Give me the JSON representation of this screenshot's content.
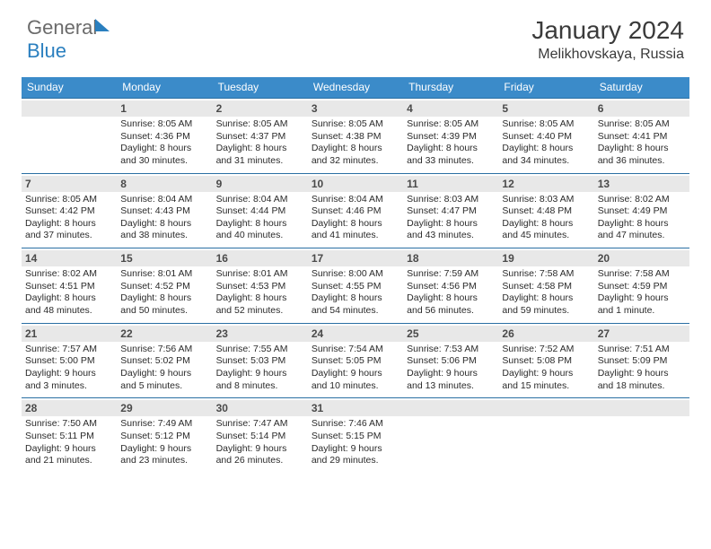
{
  "logo": {
    "word1": "General",
    "word2": "Blue"
  },
  "title": {
    "month": "January 2024",
    "location": "Melikhovskaya, Russia"
  },
  "day_headers": [
    "Sunday",
    "Monday",
    "Tuesday",
    "Wednesday",
    "Thursday",
    "Friday",
    "Saturday"
  ],
  "colors": {
    "header_bg": "#3b8bc9",
    "week_border": "#2a6fa3",
    "daynum_bg": "#e8e8e8",
    "logo_gray": "#6b6b6b",
    "logo_blue": "#2a7fbf"
  },
  "weeks": [
    [
      null,
      {
        "n": "1",
        "sr": "Sunrise: 8:05 AM",
        "ss": "Sunset: 4:36 PM",
        "d1": "Daylight: 8 hours",
        "d2": "and 30 minutes."
      },
      {
        "n": "2",
        "sr": "Sunrise: 8:05 AM",
        "ss": "Sunset: 4:37 PM",
        "d1": "Daylight: 8 hours",
        "d2": "and 31 minutes."
      },
      {
        "n": "3",
        "sr": "Sunrise: 8:05 AM",
        "ss": "Sunset: 4:38 PM",
        "d1": "Daylight: 8 hours",
        "d2": "and 32 minutes."
      },
      {
        "n": "4",
        "sr": "Sunrise: 8:05 AM",
        "ss": "Sunset: 4:39 PM",
        "d1": "Daylight: 8 hours",
        "d2": "and 33 minutes."
      },
      {
        "n": "5",
        "sr": "Sunrise: 8:05 AM",
        "ss": "Sunset: 4:40 PM",
        "d1": "Daylight: 8 hours",
        "d2": "and 34 minutes."
      },
      {
        "n": "6",
        "sr": "Sunrise: 8:05 AM",
        "ss": "Sunset: 4:41 PM",
        "d1": "Daylight: 8 hours",
        "d2": "and 36 minutes."
      }
    ],
    [
      {
        "n": "7",
        "sr": "Sunrise: 8:05 AM",
        "ss": "Sunset: 4:42 PM",
        "d1": "Daylight: 8 hours",
        "d2": "and 37 minutes."
      },
      {
        "n": "8",
        "sr": "Sunrise: 8:04 AM",
        "ss": "Sunset: 4:43 PM",
        "d1": "Daylight: 8 hours",
        "d2": "and 38 minutes."
      },
      {
        "n": "9",
        "sr": "Sunrise: 8:04 AM",
        "ss": "Sunset: 4:44 PM",
        "d1": "Daylight: 8 hours",
        "d2": "and 40 minutes."
      },
      {
        "n": "10",
        "sr": "Sunrise: 8:04 AM",
        "ss": "Sunset: 4:46 PM",
        "d1": "Daylight: 8 hours",
        "d2": "and 41 minutes."
      },
      {
        "n": "11",
        "sr": "Sunrise: 8:03 AM",
        "ss": "Sunset: 4:47 PM",
        "d1": "Daylight: 8 hours",
        "d2": "and 43 minutes."
      },
      {
        "n": "12",
        "sr": "Sunrise: 8:03 AM",
        "ss": "Sunset: 4:48 PM",
        "d1": "Daylight: 8 hours",
        "d2": "and 45 minutes."
      },
      {
        "n": "13",
        "sr": "Sunrise: 8:02 AM",
        "ss": "Sunset: 4:49 PM",
        "d1": "Daylight: 8 hours",
        "d2": "and 47 minutes."
      }
    ],
    [
      {
        "n": "14",
        "sr": "Sunrise: 8:02 AM",
        "ss": "Sunset: 4:51 PM",
        "d1": "Daylight: 8 hours",
        "d2": "and 48 minutes."
      },
      {
        "n": "15",
        "sr": "Sunrise: 8:01 AM",
        "ss": "Sunset: 4:52 PM",
        "d1": "Daylight: 8 hours",
        "d2": "and 50 minutes."
      },
      {
        "n": "16",
        "sr": "Sunrise: 8:01 AM",
        "ss": "Sunset: 4:53 PM",
        "d1": "Daylight: 8 hours",
        "d2": "and 52 minutes."
      },
      {
        "n": "17",
        "sr": "Sunrise: 8:00 AM",
        "ss": "Sunset: 4:55 PM",
        "d1": "Daylight: 8 hours",
        "d2": "and 54 minutes."
      },
      {
        "n": "18",
        "sr": "Sunrise: 7:59 AM",
        "ss": "Sunset: 4:56 PM",
        "d1": "Daylight: 8 hours",
        "d2": "and 56 minutes."
      },
      {
        "n": "19",
        "sr": "Sunrise: 7:58 AM",
        "ss": "Sunset: 4:58 PM",
        "d1": "Daylight: 8 hours",
        "d2": "and 59 minutes."
      },
      {
        "n": "20",
        "sr": "Sunrise: 7:58 AM",
        "ss": "Sunset: 4:59 PM",
        "d1": "Daylight: 9 hours",
        "d2": "and 1 minute."
      }
    ],
    [
      {
        "n": "21",
        "sr": "Sunrise: 7:57 AM",
        "ss": "Sunset: 5:00 PM",
        "d1": "Daylight: 9 hours",
        "d2": "and 3 minutes."
      },
      {
        "n": "22",
        "sr": "Sunrise: 7:56 AM",
        "ss": "Sunset: 5:02 PM",
        "d1": "Daylight: 9 hours",
        "d2": "and 5 minutes."
      },
      {
        "n": "23",
        "sr": "Sunrise: 7:55 AM",
        "ss": "Sunset: 5:03 PM",
        "d1": "Daylight: 9 hours",
        "d2": "and 8 minutes."
      },
      {
        "n": "24",
        "sr": "Sunrise: 7:54 AM",
        "ss": "Sunset: 5:05 PM",
        "d1": "Daylight: 9 hours",
        "d2": "and 10 minutes."
      },
      {
        "n": "25",
        "sr": "Sunrise: 7:53 AM",
        "ss": "Sunset: 5:06 PM",
        "d1": "Daylight: 9 hours",
        "d2": "and 13 minutes."
      },
      {
        "n": "26",
        "sr": "Sunrise: 7:52 AM",
        "ss": "Sunset: 5:08 PM",
        "d1": "Daylight: 9 hours",
        "d2": "and 15 minutes."
      },
      {
        "n": "27",
        "sr": "Sunrise: 7:51 AM",
        "ss": "Sunset: 5:09 PM",
        "d1": "Daylight: 9 hours",
        "d2": "and 18 minutes."
      }
    ],
    [
      {
        "n": "28",
        "sr": "Sunrise: 7:50 AM",
        "ss": "Sunset: 5:11 PM",
        "d1": "Daylight: 9 hours",
        "d2": "and 21 minutes."
      },
      {
        "n": "29",
        "sr": "Sunrise: 7:49 AM",
        "ss": "Sunset: 5:12 PM",
        "d1": "Daylight: 9 hours",
        "d2": "and 23 minutes."
      },
      {
        "n": "30",
        "sr": "Sunrise: 7:47 AM",
        "ss": "Sunset: 5:14 PM",
        "d1": "Daylight: 9 hours",
        "d2": "and 26 minutes."
      },
      {
        "n": "31",
        "sr": "Sunrise: 7:46 AM",
        "ss": "Sunset: 5:15 PM",
        "d1": "Daylight: 9 hours",
        "d2": "and 29 minutes."
      },
      null,
      null,
      null
    ]
  ]
}
